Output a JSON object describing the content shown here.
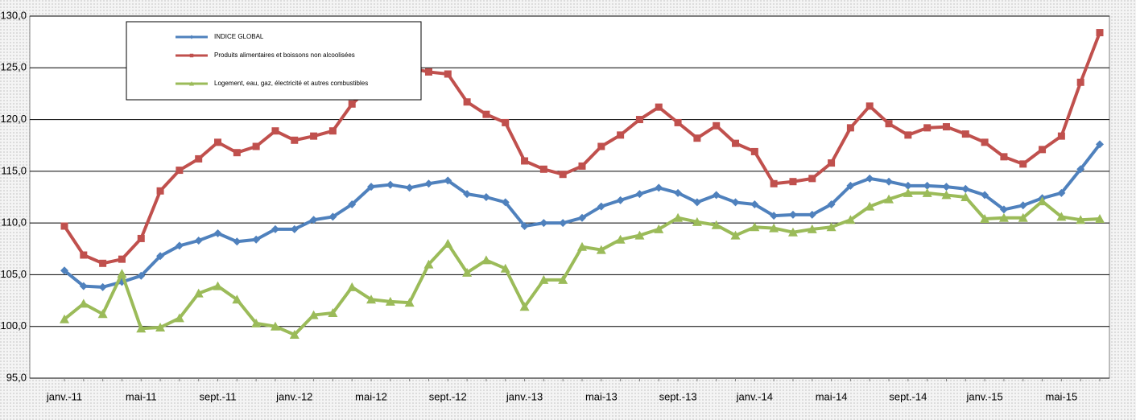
{
  "chart_data": {
    "type": "line",
    "categories": [
      "janv.-11",
      null,
      null,
      null,
      "mai-11",
      null,
      null,
      null,
      "sept.-11",
      null,
      null,
      null,
      "janv.-12",
      null,
      null,
      null,
      "mai-12",
      null,
      null,
      null,
      "sept.-12",
      null,
      null,
      null,
      "janv.-13",
      null,
      null,
      null,
      "mai-13",
      null,
      null,
      null,
      "sept.-13",
      null,
      null,
      null,
      "janv.-14",
      null,
      null,
      null,
      "mai-14",
      null,
      null,
      null,
      "sept.-14",
      null,
      null,
      null,
      "janv.-15",
      null,
      null,
      null,
      "mai-15",
      null,
      null
    ],
    "series": [
      {
        "name": "INDICE  GLOBAL",
        "color": "#4f81bd",
        "marker": "diamond",
        "values": [
          105.4,
          103.9,
          103.8,
          104.3,
          104.9,
          106.8,
          107.8,
          108.3,
          109.0,
          108.2,
          108.4,
          109.4,
          109.4,
          110.3,
          110.6,
          111.8,
          113.5,
          113.7,
          113.4,
          113.8,
          114.1,
          112.8,
          112.5,
          112.0,
          109.7,
          110.0,
          110.0,
          110.5,
          111.6,
          112.2,
          112.8,
          113.4,
          112.9,
          112.0,
          112.7,
          112.0,
          111.8,
          110.7,
          110.8,
          110.8,
          111.8,
          113.6,
          114.3,
          114.0,
          113.6,
          113.6,
          113.5,
          113.3,
          112.7,
          111.3,
          111.7,
          112.4,
          112.9,
          115.2,
          117.6
        ]
      },
      {
        "name": "Produits alimentaires et boissons non alcoolisées",
        "color": "#c0504d",
        "marker": "square",
        "values": [
          109.7,
          106.9,
          106.1,
          106.5,
          108.5,
          113.1,
          115.1,
          116.2,
          117.8,
          116.8,
          117.4,
          118.9,
          118.0,
          118.4,
          118.9,
          121.5,
          123.2,
          124.5,
          125.0,
          124.6,
          124.4,
          121.7,
          120.5,
          119.7,
          116.0,
          115.2,
          114.7,
          115.5,
          117.4,
          118.5,
          120.0,
          121.2,
          119.7,
          118.2,
          119.4,
          117.7,
          116.9,
          113.8,
          114.0,
          114.3,
          115.8,
          119.2,
          121.3,
          119.6,
          118.5,
          119.2,
          119.3,
          118.6,
          117.8,
          116.4,
          115.7,
          117.1,
          118.4,
          123.6,
          128.4
        ]
      },
      {
        "name": "Logement, eau, gaz, électricité et autres combustibles",
        "color": "#9bbb59",
        "marker": "triangle",
        "values": [
          100.7,
          102.2,
          101.2,
          105.1,
          99.8,
          99.9,
          100.8,
          103.2,
          103.9,
          102.6,
          100.3,
          100.0,
          99.2,
          101.1,
          101.3,
          103.8,
          102.6,
          102.4,
          102.3,
          106.0,
          108.0,
          105.2,
          106.4,
          105.6,
          101.9,
          104.5,
          104.5,
          107.7,
          107.4,
          108.4,
          108.8,
          109.4,
          110.5,
          110.1,
          109.8,
          108.8,
          109.6,
          109.5,
          109.1,
          109.4,
          109.6,
          110.3,
          111.6,
          112.3,
          112.9,
          112.9,
          112.7,
          112.5,
          110.4,
          110.5,
          110.5,
          112.1,
          110.6,
          110.3,
          110.4
        ]
      }
    ],
    "ylim": [
      95,
      130
    ],
    "yticks": [
      {
        "value": 95,
        "label": "95,0"
      },
      {
        "value": 100,
        "label": "100,0"
      },
      {
        "value": 105,
        "label": "105,0"
      },
      {
        "value": 110,
        "label": "110,0"
      },
      {
        "value": 115,
        "label": "115,0"
      },
      {
        "value": 120,
        "label": "120,0"
      },
      {
        "value": 125,
        "label": "125,0"
      },
      {
        "value": 130,
        "label": "130,0"
      }
    ],
    "grid": true
  }
}
